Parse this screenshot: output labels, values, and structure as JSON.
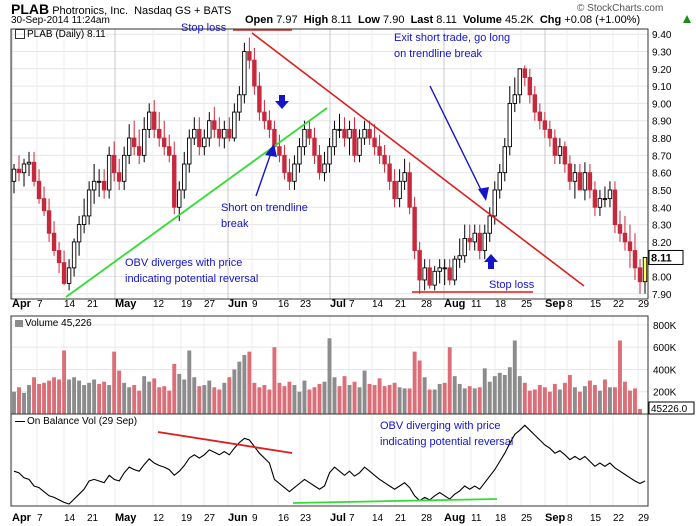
{
  "header": {
    "symbol": "PLAB",
    "company": "Photronics, Inc.",
    "exchange": "Nasdaq GS + BATS",
    "copyright": "© StockCharts.com",
    "datetime": "30-Sep-2014 11:24am",
    "quote": {
      "open_label": "Open",
      "open": "7.97",
      "high_label": "High",
      "high": "8.11",
      "low_label": "Low",
      "low": "7.90",
      "last_label": "Last",
      "last": "8.11",
      "volume_label": "Volume",
      "volume": "45.2K",
      "chg_label": "Chg",
      "chg": "+0.08 (+1.00%)"
    }
  },
  "colors": {
    "up_candle": "#000000",
    "down_candle": "#c8283c",
    "volume_up": "#8c8c8c",
    "volume_down": "#dc6e78",
    "trendline": "#dc1e1e",
    "support_line": "#32dc32",
    "annotation": "#1414c8",
    "last_price_fill": "#ffff66"
  },
  "chart_data": [
    {
      "type": "candlestick",
      "panel": "price",
      "legend": "PLAB (Daily) 8.11",
      "y_ticks": [
        "9.40",
        "9.30",
        "9.20",
        "9.10",
        "9.00",
        "8.90",
        "8.80",
        "8.70",
        "8.60",
        "8.50",
        "8.40",
        "8.30",
        "8.20",
        "8.10",
        "8.00",
        "7.90"
      ],
      "ylim": [
        7.87,
        9.43
      ],
      "last_price": "8.11",
      "x_ticks": [
        "Apr",
        "7",
        "14",
        "21",
        "May",
        "12",
        "19",
        "27",
        "Jun",
        "9",
        "16",
        "23",
        "Jul",
        "7",
        "14",
        "21",
        "28",
        "Aug",
        "11",
        "18",
        "25",
        "Sep",
        "8",
        "15",
        "22",
        "29"
      ],
      "dates": [
        "Apr 1",
        "Apr 2",
        "Apr 3",
        "Apr 4",
        "Apr 7",
        "Apr 8",
        "Apr 9",
        "Apr 10",
        "Apr 11",
        "Apr 14",
        "Apr 15",
        "Apr 16",
        "Apr 17",
        "Apr 21",
        "Apr 22",
        "Apr 23",
        "Apr 24",
        "Apr 25",
        "Apr 28",
        "Apr 29",
        "Apr 30",
        "May 1",
        "May 2",
        "May 5",
        "May 6",
        "May 7",
        "May 8",
        "May 9",
        "May 12",
        "May 13",
        "May 14",
        "May 15",
        "May 16",
        "May 19",
        "May 20",
        "May 21",
        "May 22",
        "May 23",
        "May 27",
        "May 28",
        "May 29",
        "May 30",
        "Jun 2",
        "Jun 3",
        "Jun 4",
        "Jun 5",
        "Jun 6",
        "Jun 9",
        "Jun 10",
        "Jun 11",
        "Jun 12",
        "Jun 13",
        "Jun 16",
        "Jun 17",
        "Jun 18",
        "Jun 19",
        "Jun 20",
        "Jun 23",
        "Jun 24",
        "Jun 25",
        "Jun 26",
        "Jun 27",
        "Jun 30",
        "Jul 1",
        "Jul 2",
        "Jul 3",
        "Jul 7",
        "Jul 8",
        "Jul 9",
        "Jul 10",
        "Jul 11",
        "Jul 14",
        "Jul 15",
        "Jul 16",
        "Jul 17",
        "Jul 18",
        "Jul 21",
        "Jul 22",
        "Jul 23",
        "Jul 24",
        "Jul 25",
        "Jul 28",
        "Jul 29",
        "Jul 30",
        "Jul 31",
        "Aug 1",
        "Aug 4",
        "Aug 5",
        "Aug 6",
        "Aug 7",
        "Aug 8",
        "Aug 11",
        "Aug 12",
        "Aug 13",
        "Aug 14",
        "Aug 15",
        "Aug 18",
        "Aug 19",
        "Aug 20",
        "Aug 21",
        "Aug 22",
        "Aug 25",
        "Aug 26",
        "Aug 27",
        "Aug 28",
        "Aug 29",
        "Sep 2",
        "Sep 3",
        "Sep 4",
        "Sep 5",
        "Sep 8",
        "Sep 9",
        "Sep 10",
        "Sep 11",
        "Sep 12",
        "Sep 15",
        "Sep 16",
        "Sep 17",
        "Sep 18",
        "Sep 19",
        "Sep 22",
        "Sep 23",
        "Sep 24",
        "Sep 25",
        "Sep 26",
        "Sep 29",
        "Sep 30"
      ],
      "open": [
        8.55,
        8.62,
        8.6,
        8.65,
        8.66,
        8.55,
        8.45,
        8.38,
        8.25,
        8.15,
        8.08,
        7.96,
        8.05,
        8.2,
        8.3,
        8.35,
        8.5,
        8.55,
        8.55,
        8.5,
        8.7,
        8.6,
        8.55,
        8.7,
        8.8,
        8.75,
        8.7,
        8.85,
        8.95,
        8.85,
        8.8,
        8.75,
        8.7,
        8.4,
        8.5,
        8.65,
        8.8,
        8.85,
        8.75,
        8.8,
        8.9,
        8.85,
        8.8,
        8.85,
        8.8,
        8.95,
        9.05,
        9.3,
        9.25,
        9.1,
        8.95,
        8.9,
        8.85,
        8.75,
        8.7,
        8.6,
        8.55,
        8.65,
        8.75,
        8.85,
        8.8,
        8.7,
        8.6,
        8.65,
        8.75,
        8.85,
        8.85,
        8.8,
        8.85,
        8.7,
        8.8,
        8.85,
        8.8,
        8.75,
        8.7,
        8.65,
        8.55,
        8.45,
        8.55,
        8.6,
        8.4,
        8.15,
        7.98,
        8.05,
        7.95,
        8.03,
        8.05,
        8.05,
        7.98,
        8.1,
        8.12,
        8.22,
        8.2,
        8.25,
        8.15,
        8.25,
        8.35,
        8.5,
        8.6,
        8.75,
        9.0,
        9.05,
        9.2,
        9.15,
        9.05,
        8.95,
        8.9,
        8.85,
        8.8,
        8.7,
        8.75,
        8.65,
        8.55,
        8.6,
        8.5,
        8.6,
        8.5,
        8.4,
        8.45,
        8.45,
        8.5,
        8.3,
        8.25,
        8.2,
        8.15,
        8.05,
        7.97
      ],
      "high": [
        8.65,
        8.7,
        8.68,
        8.72,
        8.72,
        8.62,
        8.52,
        8.45,
        8.32,
        8.2,
        8.15,
        8.1,
        8.22,
        8.35,
        8.45,
        8.55,
        8.65,
        8.62,
        8.62,
        8.75,
        8.78,
        8.68,
        8.75,
        8.88,
        8.9,
        8.85,
        8.92,
        9.0,
        9.02,
        8.95,
        8.9,
        8.82,
        8.78,
        8.55,
        8.72,
        8.85,
        8.92,
        8.92,
        8.85,
        8.95,
        8.98,
        8.92,
        8.9,
        8.92,
        9.0,
        9.1,
        9.35,
        9.38,
        9.32,
        9.18,
        9.02,
        8.96,
        8.9,
        8.82,
        8.76,
        8.68,
        8.7,
        8.8,
        8.9,
        8.9,
        8.86,
        8.76,
        8.72,
        8.8,
        8.9,
        8.94,
        8.92,
        8.9,
        8.92,
        8.85,
        8.9,
        8.9,
        8.88,
        8.82,
        8.76,
        8.7,
        8.62,
        8.62,
        8.68,
        8.66,
        8.46,
        8.2,
        8.1,
        8.1,
        8.06,
        8.1,
        8.1,
        8.1,
        8.12,
        8.22,
        8.3,
        8.3,
        8.3,
        8.3,
        8.3,
        8.4,
        8.55,
        8.65,
        8.8,
        9.1,
        9.15,
        9.2,
        9.22,
        9.2,
        9.1,
        9.0,
        8.95,
        8.9,
        8.85,
        8.8,
        8.78,
        8.7,
        8.65,
        8.65,
        8.66,
        8.65,
        8.55,
        8.5,
        8.52,
        8.55,
        8.55,
        8.38,
        8.35,
        8.3,
        8.25,
        8.1,
        8.11
      ],
      "low": [
        8.48,
        8.55,
        8.52,
        8.58,
        8.52,
        8.42,
        8.35,
        8.2,
        8.12,
        8.02,
        7.95,
        7.92,
        8.0,
        8.12,
        8.25,
        8.3,
        8.42,
        8.46,
        8.45,
        8.45,
        8.55,
        8.5,
        8.5,
        8.65,
        8.7,
        8.65,
        8.66,
        8.8,
        8.8,
        8.75,
        8.7,
        8.66,
        8.36,
        8.32,
        8.45,
        8.6,
        8.76,
        8.7,
        8.7,
        8.75,
        8.8,
        8.75,
        8.74,
        8.78,
        8.78,
        8.9,
        9.0,
        9.2,
        9.05,
        8.9,
        8.85,
        8.8,
        8.7,
        8.66,
        8.56,
        8.5,
        8.5,
        8.6,
        8.7,
        8.76,
        8.65,
        8.56,
        8.55,
        8.6,
        8.7,
        8.8,
        8.75,
        8.7,
        8.66,
        8.66,
        8.76,
        8.76,
        8.7,
        8.65,
        8.6,
        8.5,
        8.4,
        8.4,
        8.5,
        8.36,
        8.1,
        7.9,
        7.92,
        7.93,
        7.92,
        7.96,
        7.95,
        7.95,
        7.95,
        8.05,
        8.08,
        8.15,
        8.15,
        8.1,
        8.1,
        8.2,
        8.3,
        8.45,
        8.55,
        8.7,
        8.95,
        9.0,
        9.1,
        9.0,
        8.9,
        8.85,
        8.8,
        8.75,
        8.65,
        8.65,
        8.6,
        8.5,
        8.45,
        8.5,
        8.44,
        8.45,
        8.35,
        8.35,
        8.4,
        8.4,
        8.25,
        8.2,
        8.15,
        8.05,
        7.98,
        7.9,
        7.9
      ],
      "close": [
        8.62,
        8.6,
        8.65,
        8.66,
        8.55,
        8.45,
        8.38,
        8.25,
        8.15,
        8.08,
        7.96,
        8.05,
        8.2,
        8.3,
        8.35,
        8.5,
        8.55,
        8.55,
        8.5,
        8.7,
        8.6,
        8.55,
        8.7,
        8.8,
        8.75,
        8.7,
        8.85,
        8.95,
        8.85,
        8.8,
        8.75,
        8.7,
        8.4,
        8.5,
        8.65,
        8.8,
        8.85,
        8.75,
        8.8,
        8.9,
        8.85,
        8.8,
        8.85,
        8.8,
        8.95,
        9.05,
        9.3,
        9.25,
        9.1,
        8.95,
        8.9,
        8.85,
        8.75,
        8.7,
        8.6,
        8.55,
        8.65,
        8.75,
        8.85,
        8.8,
        8.7,
        8.6,
        8.65,
        8.75,
        8.85,
        8.85,
        8.8,
        8.85,
        8.7,
        8.8,
        8.85,
        8.8,
        8.75,
        8.7,
        8.65,
        8.55,
        8.45,
        8.55,
        8.6,
        8.4,
        8.15,
        7.98,
        8.05,
        7.95,
        8.03,
        8.05,
        8.05,
        7.98,
        8.1,
        8.12,
        8.22,
        8.2,
        8.25,
        8.15,
        8.25,
        8.35,
        8.5,
        8.6,
        8.75,
        9.0,
        9.05,
        9.2,
        9.15,
        9.05,
        8.95,
        8.9,
        8.85,
        8.8,
        8.7,
        8.75,
        8.65,
        8.55,
        8.6,
        8.5,
        8.6,
        8.5,
        8.4,
        8.45,
        8.45,
        8.5,
        8.3,
        8.25,
        8.2,
        8.15,
        8.05,
        7.97,
        8.11
      ],
      "annotations": [
        {
          "text": "Stop loss",
          "target": "above Jun 9 high"
        },
        {
          "text": "Stop loss",
          "target": "below Aug lows"
        },
        {
          "text": "Exit short trade, go long on trendline break"
        },
        {
          "text": "Short on trendline break"
        },
        {
          "text": "OBV diverges with price indicating potential reversal"
        }
      ],
      "lines": [
        {
          "kind": "falling trendline",
          "color": "red"
        },
        {
          "kind": "rising support",
          "color": "green"
        }
      ]
    },
    {
      "type": "bar",
      "panel": "volume",
      "legend": "Volume 45,226",
      "last_value": "45226.0",
      "y_ticks": [
        "800K",
        "600K",
        "400K",
        "200K"
      ],
      "ylim": [
        0,
        880000
      ],
      "values": [
        200000,
        240000,
        190000,
        260000,
        330000,
        270000,
        280000,
        300000,
        330000,
        310000,
        570000,
        310000,
        330000,
        300000,
        260000,
        280000,
        310000,
        270000,
        290000,
        260000,
        560000,
        390000,
        280000,
        240000,
        260000,
        210000,
        340000,
        290000,
        320000,
        240000,
        250000,
        210000,
        450000,
        360000,
        310000,
        570000,
        330000,
        250000,
        260000,
        300000,
        240000,
        220000,
        280000,
        330000,
        400000,
        470000,
        530000,
        560000,
        280000,
        240000,
        260000,
        220000,
        600000,
        280000,
        250000,
        290000,
        260000,
        200000,
        300000,
        220000,
        240000,
        270000,
        290000,
        680000,
        330000,
        250000,
        340000,
        260000,
        290000,
        240000,
        390000,
        270000,
        260000,
        320000,
        250000,
        260000,
        280000,
        240000,
        230000,
        230000,
        560000,
        480000,
        330000,
        220000,
        220000,
        270000,
        280000,
        600000,
        340000,
        270000,
        230000,
        250000,
        230000,
        240000,
        410000,
        290000,
        340000,
        370000,
        350000,
        420000,
        660000,
        340000,
        280000,
        210000,
        220000,
        260000,
        240000,
        200000,
        270000,
        220000,
        280000,
        350000,
        240000,
        200000,
        250000,
        300000,
        260000,
        210000,
        310000,
        240000,
        240000,
        660000,
        290000,
        210000,
        230000,
        45226
      ],
      "up_days": [
        true,
        false,
        true,
        true,
        false,
        false,
        false,
        false,
        false,
        false,
        false,
        true,
        true,
        true,
        true,
        true,
        true,
        false,
        false,
        true,
        false,
        false,
        true,
        true,
        false,
        false,
        true,
        true,
        false,
        false,
        false,
        false,
        false,
        true,
        true,
        true,
        true,
        false,
        true,
        true,
        false,
        false,
        true,
        false,
        true,
        true,
        true,
        false,
        false,
        false,
        false,
        false,
        false,
        false,
        false,
        false,
        true,
        true,
        true,
        false,
        false,
        false,
        true,
        true,
        true,
        false,
        false,
        true,
        false,
        true,
        true,
        false,
        false,
        false,
        false,
        false,
        false,
        true,
        true,
        false,
        false,
        false,
        true,
        false,
        true,
        true,
        false,
        false,
        true,
        true,
        true,
        false,
        true,
        false,
        true,
        true,
        true,
        true,
        true,
        true,
        true,
        true,
        false,
        false,
        false,
        false,
        false,
        false,
        false,
        true,
        false,
        false,
        true,
        false,
        true,
        false,
        false,
        true,
        false,
        true,
        false,
        false,
        false,
        false,
        false,
        false,
        true
      ]
    },
    {
      "type": "line",
      "panel": "indicator",
      "legend": "On Balance Vol (29 Sep)",
      "values": [
        0.4,
        0.38,
        0.32,
        0.3,
        0.22,
        0.2,
        0.15,
        0.1,
        0.08,
        0.05,
        0.02,
        0.0,
        0.06,
        0.12,
        0.18,
        0.28,
        0.3,
        0.28,
        0.26,
        0.35,
        0.3,
        0.28,
        0.38,
        0.45,
        0.42,
        0.4,
        0.48,
        0.55,
        0.5,
        0.47,
        0.45,
        0.42,
        0.35,
        0.4,
        0.47,
        0.56,
        0.6,
        0.56,
        0.6,
        0.66,
        0.63,
        0.6,
        0.64,
        0.6,
        0.68,
        0.75,
        0.8,
        0.78,
        0.7,
        0.62,
        0.56,
        0.5,
        0.3,
        0.25,
        0.2,
        0.15,
        0.2,
        0.25,
        0.3,
        0.26,
        0.22,
        0.18,
        0.22,
        0.38,
        0.45,
        0.4,
        0.35,
        0.4,
        0.34,
        0.38,
        0.45,
        0.4,
        0.35,
        0.3,
        0.26,
        0.22,
        0.18,
        0.22,
        0.26,
        0.2,
        0.1,
        0.04,
        0.08,
        0.05,
        0.1,
        0.14,
        0.1,
        0.06,
        0.12,
        0.16,
        0.22,
        0.18,
        0.22,
        0.18,
        0.26,
        0.34,
        0.42,
        0.52,
        0.62,
        0.74,
        0.85,
        0.9,
        0.96,
        0.9,
        0.84,
        0.78,
        0.72,
        0.68,
        0.62,
        0.65,
        0.6,
        0.54,
        0.58,
        0.54,
        0.58,
        0.52,
        0.46,
        0.5,
        0.46,
        0.5,
        0.44,
        0.4,
        0.36,
        0.32,
        0.28,
        0.25,
        0.28
      ],
      "ylim": [
        0,
        1
      ],
      "annotations": [
        {
          "text": "OBV diverging with price indicating potential reversal"
        }
      ]
    }
  ]
}
